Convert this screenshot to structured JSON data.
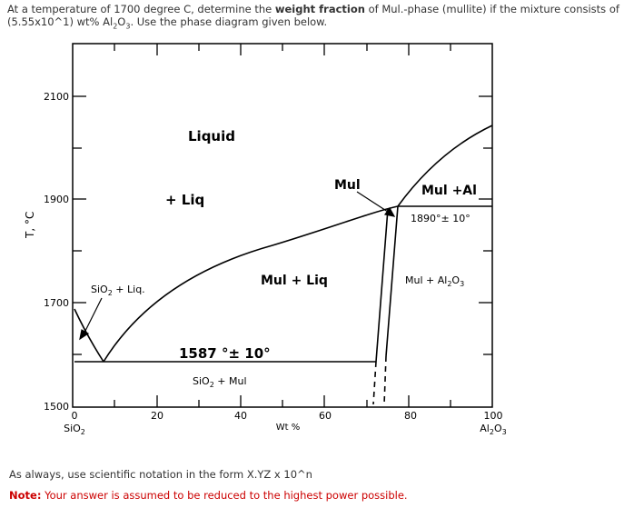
{
  "question": {
    "pre": "At a temperature of 1700 degree C, determine the ",
    "bold1": "weight fraction",
    "mid": " of Mul.-phase (mullite) if the mixture consists of (5.55x10^1) wt% Al",
    "sub1": "2",
    "mid2": "O",
    "sub2": "3",
    "post": ". Use the phase diagram given below."
  },
  "diagram": {
    "y_axis_label": "T, °C",
    "x_axis_label": "Wt %",
    "y_ticks": [
      "2100",
      "1900",
      "1700",
      "1500"
    ],
    "x_ticks": [
      "0",
      "20",
      "40",
      "60",
      "80",
      "100"
    ],
    "x_left_end": "SiO2",
    "x_right_end": "Al2O3",
    "regions": {
      "liquid": "Liquid",
      "plus_liq": "+ Liq",
      "sio2_liq": "SiO2 + Liq.",
      "mul_liq": "Mul + Liq",
      "mul": "Mul",
      "mul_al": "Mul +Al",
      "mul_al2o3": "Mul + Al2O3",
      "sio2_mul": "SiO2 + Mul"
    },
    "annotations": {
      "eutectic_temp": "1587 °± 10°",
      "peritectic_temp": "1890°± 10°"
    }
  },
  "footer": {
    "hint": "As always, use scientific notation in the form X.YZ x 10^n",
    "note_label": "Note:",
    "note_text": " Your answer is assumed to be reduced to the highest power possible."
  }
}
